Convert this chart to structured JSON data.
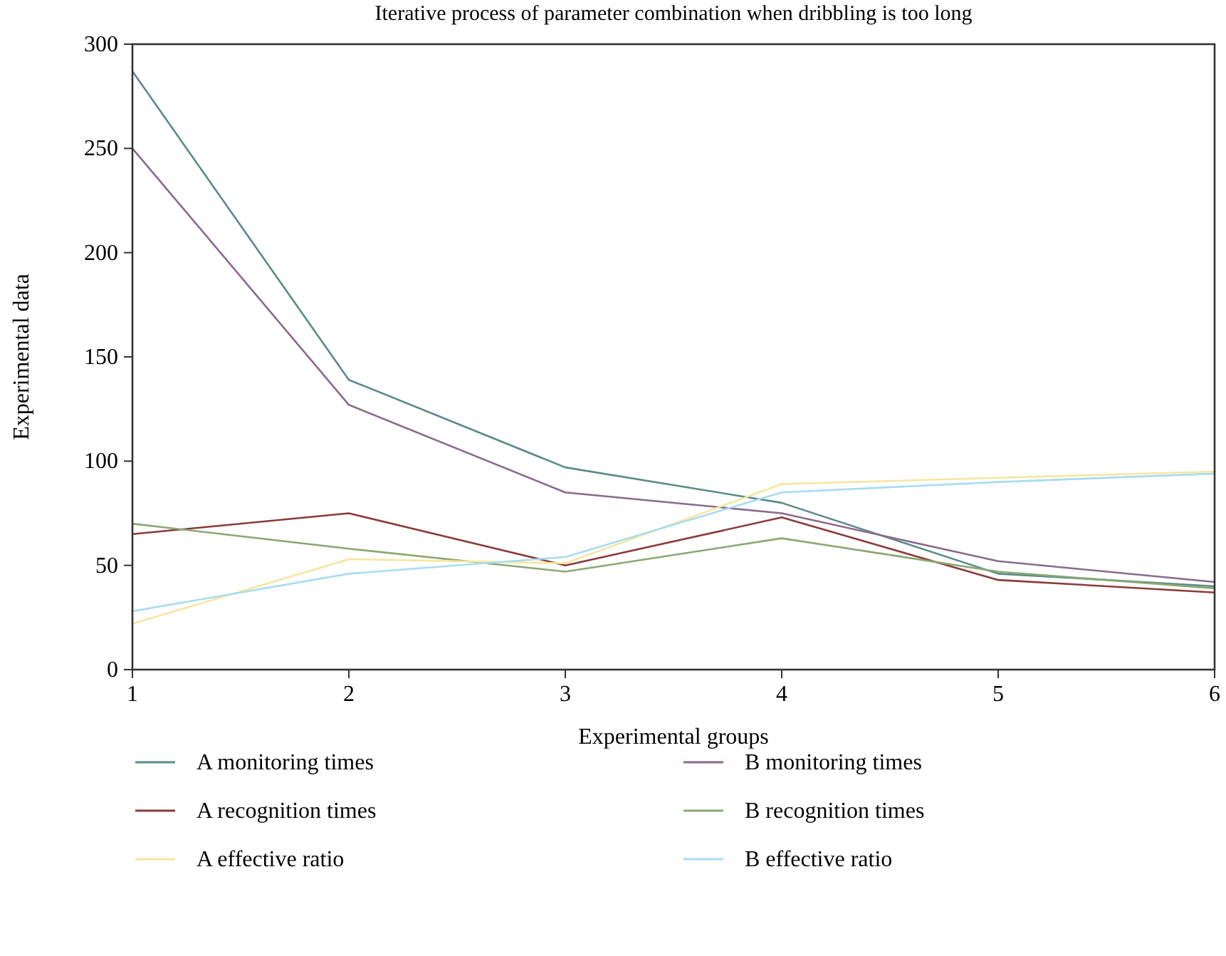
{
  "chart_data": {
    "type": "line",
    "title": "Iterative process of parameter combination when dribbling is too long",
    "xlabel": "Experimental groups",
    "ylabel": "Experimental data",
    "x": [
      1,
      2,
      3,
      4,
      5,
      6
    ],
    "xlim": [
      1,
      6
    ],
    "xticks": [
      1,
      2,
      3,
      4,
      5,
      6
    ],
    "ylim": [
      0,
      300
    ],
    "yticks": [
      0,
      50,
      100,
      150,
      200,
      250,
      300
    ],
    "grid": false,
    "legend": "bottom",
    "marker": "none",
    "line_style": "solid",
    "series": [
      {
        "name": "A monitoring times",
        "color": "#5b8a8a",
        "values": [
          287,
          139,
          97,
          80,
          46,
          40
        ]
      },
      {
        "name": "B monitoring times",
        "color": "#8a6a8a",
        "values": [
          250,
          127,
          85,
          75,
          52,
          42
        ]
      },
      {
        "name": "A recognition times",
        "color": "#8b3a3a",
        "values": [
          65,
          75,
          50,
          73,
          43,
          37
        ]
      },
      {
        "name": "B recognition times",
        "color": "#8aa870",
        "values": [
          70,
          58,
          47,
          63,
          47,
          39
        ]
      },
      {
        "name": "A effective ratio",
        "color": "#f5e6a0",
        "values": [
          22,
          53,
          51,
          89,
          92,
          95
        ]
      },
      {
        "name": "B effective ratio",
        "color": "#a8dcf0",
        "values": [
          28,
          46,
          54,
          85,
          90,
          94
        ]
      }
    ]
  }
}
